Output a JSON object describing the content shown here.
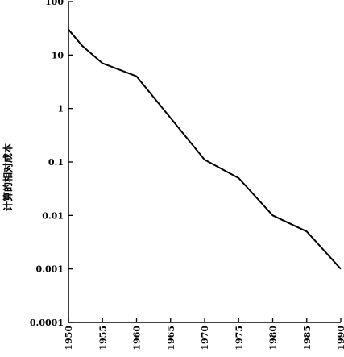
{
  "chart_data": {
    "type": "line",
    "title": "",
    "xlabel": "",
    "ylabel": "计算的相对成本",
    "y_scale": "log",
    "ylim": [
      0.0001,
      100
    ],
    "xlim": [
      1950,
      1990
    ],
    "y_ticks": [
      {
        "value": 100,
        "label": "100"
      },
      {
        "value": 10,
        "label": "10"
      },
      {
        "value": 1,
        "label": "1"
      },
      {
        "value": 0.1,
        "label": "0.1"
      },
      {
        "value": 0.01,
        "label": "0.01"
      },
      {
        "value": 0.001,
        "label": "0.001"
      },
      {
        "value": 0.0001,
        "label": "0.0001"
      }
    ],
    "x_ticks": [
      "1950",
      "1955",
      "1960",
      "1965",
      "1970",
      "1975",
      "1980",
      "1985",
      "1990"
    ],
    "grid": false,
    "series": [
      {
        "x": [
          1950,
          1952,
          1955,
          1960,
          1970,
          1975,
          1980,
          1985,
          1990
        ],
        "y": [
          30,
          15,
          7,
          4,
          0.11,
          0.05,
          0.01,
          0.005,
          0.001
        ]
      }
    ],
    "line_color": "#000000"
  }
}
